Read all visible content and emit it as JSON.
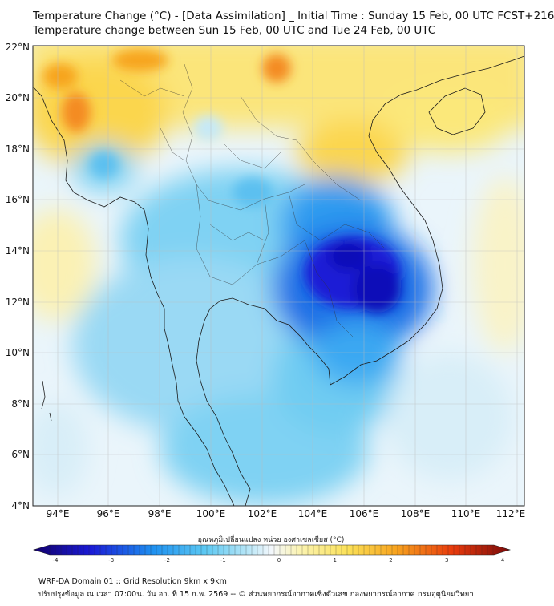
{
  "title": {
    "line1": "Temperature Change (°C) - [Data Assimilation] _ Initial Time : Sunday 15 Feb, 00 UTC FCST+216",
    "line2": "Temperature change between Sun 15 Feb, 00 UTC and Tue 24 Feb, 00 UTC"
  },
  "map": {
    "lat_labels": [
      "22°N",
      "20°N",
      "18°N",
      "16°N",
      "14°N",
      "12°N",
      "10°N",
      "8°N",
      "6°N",
      "4°N"
    ],
    "lon_labels": [
      "94°E",
      "96°E",
      "98°E",
      "100°E",
      "102°E",
      "104°E",
      "106°E",
      "108°E",
      "110°E",
      "112°E"
    ]
  },
  "colorbar": {
    "title": "อุณหภูมิเปลี่ยนแปลง หน่วย องศาเซลเซียส (°C)",
    "ticks": [
      "-4",
      "-3",
      "-2",
      "-1",
      "0",
      "1",
      "2",
      "3",
      "4"
    ],
    "colors": {
      "neg_extreme": "#12006b",
      "neg_strong": "#1a1ad6",
      "neg_mid": "#1e90f0",
      "neg_light": "#5cc8f2",
      "neg_faint": "#b8e6f7",
      "neutral": "#f4f8fc",
      "pos_faint": "#fbf3b0",
      "pos_light": "#fbe158",
      "pos_mid": "#f7a41f",
      "pos_strong": "#e83a0c",
      "pos_extreme": "#7a0a0a"
    }
  },
  "footer": {
    "line1": "WRF-DA Domain 01 :: Grid Resolution 9km x 9km",
    "line2": "ปรับปรุงข้อมูล ณ เวลา 07:00น. วัน อา. ที่ 15 ก.พ. 2569 -- © ส่วนพยากรณ์อากาศเชิงตัวเลข กองพยากรณ์อากาศ กรมอุตุนิยมวิทยา"
  }
}
